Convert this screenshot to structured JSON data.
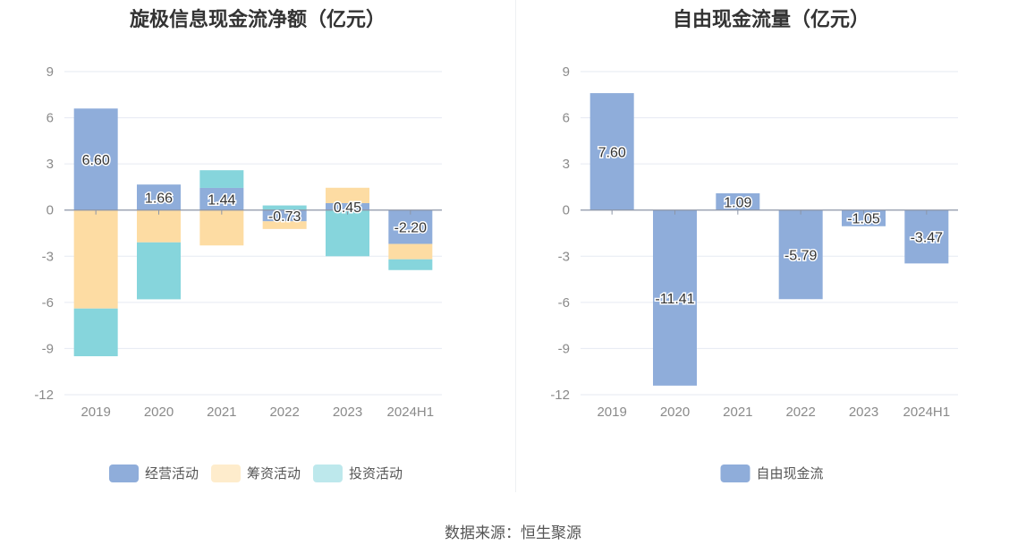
{
  "charts": {
    "left": {
      "title": "旋极信息现金流净额（亿元）",
      "chart_data": {
        "type": "bar",
        "stacked": true,
        "categories": [
          "2019",
          "2020",
          "2021",
          "2022",
          "2023",
          "2024H1"
        ],
        "ylim": [
          -12,
          9
        ],
        "yticks": [
          "9",
          "6",
          "3",
          "0",
          "-3",
          "-6",
          "-9",
          "-12"
        ],
        "grid": true,
        "legend_position": "bottom",
        "series": [
          {
            "name": "经营活动",
            "color": "#8fadda",
            "values": [
              6.6,
              1.66,
              1.44,
              -0.73,
              0.45,
              -2.2
            ],
            "labels": [
              "6.60",
              "1.66",
              "1.44",
              "-0.73",
              "0.45",
              "-2.20"
            ]
          },
          {
            "name": "筹资活动",
            "color": "#fddca3",
            "values": [
              -6.4,
              -2.1,
              -2.3,
              -0.5,
              1.0,
              -1.0
            ]
          },
          {
            "name": "投资活动",
            "color": "#86d5dc",
            "values": [
              -3.1,
              -3.7,
              1.15,
              0.3,
              -3.0,
              -0.7
            ]
          }
        ]
      }
    },
    "right": {
      "title": "自由现金流量（亿元）",
      "chart_data": {
        "type": "bar",
        "categories": [
          "2019",
          "2020",
          "2021",
          "2022",
          "2023",
          "2024H1"
        ],
        "ylim": [
          -12,
          9
        ],
        "yticks": [
          "9",
          "6",
          "3",
          "0",
          "-3",
          "-6",
          "-9",
          "-12"
        ],
        "grid": true,
        "legend_position": "bottom",
        "series": [
          {
            "name": "自由现金流",
            "color": "#8fadda",
            "values": [
              7.6,
              -11.41,
              1.09,
              -5.79,
              -1.05,
              -3.47
            ],
            "labels": [
              "7.60",
              "-11.41",
              "1.09",
              "-5.79",
              "-1.05",
              "-3.47"
            ]
          }
        ]
      }
    }
  },
  "source": "数据来源：恒生聚源"
}
